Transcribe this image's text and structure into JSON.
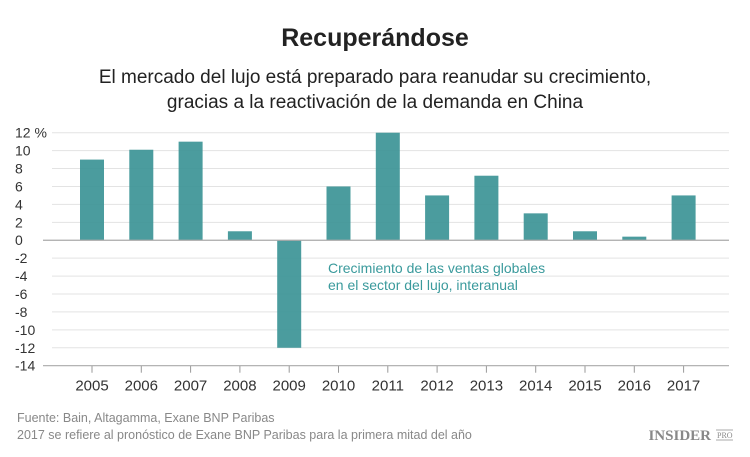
{
  "chart_data": {
    "type": "bar",
    "title": "Recuperándose",
    "subtitle": [
      "El mercado del lujo está preparado para reanudar su crecimiento,",
      "gracias a la reactivación de la demanda en China"
    ],
    "categories": [
      "2005",
      "2006",
      "2007",
      "2008",
      "2009",
      "2010",
      "2011",
      "2012",
      "2013",
      "2014",
      "2015",
      "2016",
      "2017"
    ],
    "values": [
      9,
      10.1,
      11,
      1,
      -12,
      6,
      12,
      5,
      7.2,
      3,
      1,
      0.4,
      5
    ],
    "ylim": [
      -14,
      12
    ],
    "yticks": [
      12,
      10,
      8,
      6,
      4,
      2,
      0,
      -2,
      -4,
      -6,
      -8,
      -10,
      -12,
      -14
    ],
    "ytick_labels": [
      "12 %",
      "10",
      "8",
      "6",
      "4",
      "2",
      "0",
      "-2",
      "-4",
      "-6",
      "-8",
      "-10",
      "-12",
      "-14"
    ],
    "grid": true,
    "bar_color": "#3d9597",
    "annotation": [
      "Crecimiento de las ventas globales",
      "en el sector del lujo, interanual"
    ]
  },
  "footer": {
    "source": "Fuente: Bain, Altagamma, Exane BNP Paribas",
    "note": "2017 se refiere al pronóstico de Exane BNP Paribas para la primera mitad del año"
  },
  "logo": {
    "main": "INSIDER",
    "sub": "PRO"
  }
}
